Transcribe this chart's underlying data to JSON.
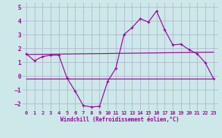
{
  "xlabel": "Windchill (Refroidissement éolien,°C)",
  "bg_color": "#cce8e8",
  "grid_color": "#aaaacc",
  "line_color": "#990099",
  "xlim": [
    -0.5,
    23.5
  ],
  "ylim": [
    -2.5,
    5.3
  ],
  "yticks": [
    -2,
    -1,
    0,
    1,
    2,
    3,
    4,
    5
  ],
  "xticks": [
    0,
    1,
    2,
    3,
    4,
    5,
    6,
    7,
    8,
    9,
    10,
    11,
    12,
    13,
    14,
    15,
    16,
    17,
    18,
    19,
    20,
    21,
    22,
    23
  ],
  "line1_x": [
    0,
    1,
    2,
    3,
    4,
    5,
    6,
    7,
    8,
    9,
    10,
    11,
    12,
    13,
    14,
    15,
    16,
    17,
    18,
    19,
    20,
    21,
    22,
    23
  ],
  "line1_y": [
    1.6,
    1.1,
    1.4,
    1.5,
    1.5,
    -0.15,
    -1.1,
    -2.15,
    -2.25,
    -2.2,
    -0.4,
    0.55,
    3.0,
    3.5,
    4.15,
    3.9,
    4.7,
    3.35,
    2.25,
    2.3,
    1.9,
    1.6,
    0.95,
    -0.2
  ],
  "line2_x": [
    0,
    23
  ],
  "line2_y": [
    1.55,
    1.72
  ],
  "line3_x": [
    0,
    23
  ],
  "line3_y": [
    -0.18,
    -0.18
  ]
}
